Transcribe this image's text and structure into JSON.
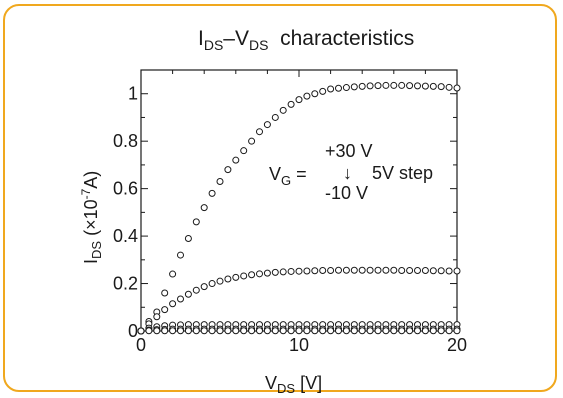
{
  "chart_data": {
    "type": "scatter",
    "title": {
      "main": "I",
      "sub1": "DS",
      "mid": "–V",
      "sub2": "DS",
      "tail": "  characteristics"
    },
    "xlabel": {
      "main": "V",
      "sub": "DS",
      "tail": " [V]"
    },
    "ylabel": {
      "main": "I",
      "sub": "DS",
      "mid": " (×10",
      "sup": "-7",
      "tail": "A)"
    },
    "xlim": [
      0,
      20
    ],
    "ylim": [
      0,
      1.1
    ],
    "x_ticks": [
      0,
      10,
      20
    ],
    "x_tick_labels": [
      "0",
      "10",
      "20"
    ],
    "y_ticks": [
      0,
      0.2,
      0.4,
      0.6,
      0.8,
      1.0
    ],
    "y_tick_labels": [
      "0",
      "0.2",
      "0.4",
      "0.6",
      "0.8",
      "1"
    ],
    "grid": false,
    "marker": "open-circle",
    "annotation": {
      "vg_main": "V",
      "vg_sub": "G",
      "vg_eq": " =",
      "top": "+30 V",
      "arrow": "↓",
      "step": "5V step",
      "bottom": "-10 V"
    },
    "series": [
      {
        "vg": 30,
        "x": [
          0,
          0.5,
          1,
          1.5,
          2,
          2.5,
          3,
          3.5,
          4,
          4.5,
          5,
          5.5,
          6,
          6.5,
          7,
          7.5,
          8,
          8.5,
          9,
          9.5,
          10,
          10.5,
          11,
          11.5,
          12,
          12.5,
          13,
          13.5,
          14,
          14.5,
          15,
          15.5,
          16,
          16.5,
          17,
          17.5,
          18,
          18.5,
          19,
          19.5,
          20
        ],
        "y": [
          0,
          0.04,
          0.08,
          0.16,
          0.24,
          0.32,
          0.39,
          0.46,
          0.52,
          0.58,
          0.63,
          0.68,
          0.72,
          0.76,
          0.8,
          0.84,
          0.87,
          0.9,
          0.93,
          0.955,
          0.975,
          0.99,
          1.0,
          1.01,
          1.02,
          1.023,
          1.026,
          1.029,
          1.031,
          1.033,
          1.034,
          1.035,
          1.035,
          1.035,
          1.034,
          1.033,
          1.032,
          1.031,
          1.03,
          1.027,
          1.024
        ]
      },
      {
        "vg": 25,
        "x": [
          0,
          0.5,
          1,
          1.5,
          2,
          2.5,
          3,
          3.5,
          4,
          4.5,
          5,
          5.5,
          6,
          6.5,
          7,
          7.5,
          8,
          8.5,
          9,
          9.5,
          10,
          10.5,
          11,
          11.5,
          12,
          12.5,
          13,
          13.5,
          14,
          14.5,
          15,
          15.5,
          16,
          16.5,
          17,
          17.5,
          18,
          18.5,
          19,
          19.5,
          20
        ],
        "y": [
          0,
          0.03,
          0.06,
          0.09,
          0.115,
          0.135,
          0.155,
          0.172,
          0.187,
          0.2,
          0.21,
          0.219,
          0.226,
          0.232,
          0.237,
          0.241,
          0.244,
          0.247,
          0.249,
          0.251,
          0.252,
          0.253,
          0.254,
          0.255,
          0.255,
          0.256,
          0.256,
          0.256,
          0.256,
          0.256,
          0.256,
          0.256,
          0.256,
          0.255,
          0.255,
          0.255,
          0.255,
          0.254,
          0.254,
          0.253,
          0.253
        ]
      },
      {
        "vg": 20,
        "x": [
          0,
          0.5,
          1,
          1.5,
          2,
          2.5,
          3,
          3.5,
          4,
          4.5,
          5,
          5.5,
          6,
          6.5,
          7,
          7.5,
          8,
          8.5,
          9,
          9.5,
          10,
          10.5,
          11,
          11.5,
          12,
          12.5,
          13,
          13.5,
          14,
          14.5,
          15,
          15.5,
          16,
          16.5,
          17,
          17.5,
          18,
          18.5,
          19,
          19.5,
          20
        ],
        "y": [
          0,
          0.012,
          0.018,
          0.022,
          0.025,
          0.026,
          0.027,
          0.027,
          0.027,
          0.027,
          0.027,
          0.027,
          0.027,
          0.027,
          0.027,
          0.027,
          0.027,
          0.027,
          0.027,
          0.027,
          0.027,
          0.027,
          0.027,
          0.027,
          0.027,
          0.027,
          0.027,
          0.027,
          0.027,
          0.027,
          0.027,
          0.027,
          0.027,
          0.027,
          0.027,
          0.027,
          0.027,
          0.027,
          0.027,
          0.027,
          0.027
        ]
      },
      {
        "vg": 15,
        "x": [
          0,
          0.5,
          1,
          1.5,
          2,
          2.5,
          3,
          3.5,
          4,
          4.5,
          5,
          5.5,
          6,
          6.5,
          7,
          7.5,
          8,
          8.5,
          9,
          9.5,
          10,
          10.5,
          11,
          11.5,
          12,
          12.5,
          13,
          13.5,
          14,
          14.5,
          15,
          15.5,
          16,
          16.5,
          17,
          17.5,
          18,
          18.5,
          19,
          19.5,
          20
        ],
        "y": [
          0,
          0.004,
          0.006,
          0.007,
          0.008,
          0.008,
          0.008,
          0.008,
          0.008,
          0.008,
          0.008,
          0.008,
          0.008,
          0.008,
          0.008,
          0.008,
          0.008,
          0.008,
          0.008,
          0.008,
          0.008,
          0.008,
          0.008,
          0.008,
          0.008,
          0.008,
          0.008,
          0.008,
          0.008,
          0.008,
          0.008,
          0.008,
          0.008,
          0.008,
          0.008,
          0.008,
          0.008,
          0.008,
          0.008,
          0.008,
          0.008
        ]
      },
      {
        "vg": 10,
        "x": [
          0,
          0.5,
          1,
          1.5,
          2,
          2.5,
          3,
          3.5,
          4,
          4.5,
          5,
          5.5,
          6,
          6.5,
          7,
          7.5,
          8,
          8.5,
          9,
          9.5,
          10,
          10.5,
          11,
          11.5,
          12,
          12.5,
          13,
          13.5,
          14,
          14.5,
          15,
          15.5,
          16,
          16.5,
          17,
          17.5,
          18,
          18.5,
          19,
          19.5,
          20
        ],
        "y": [
          0,
          0.001,
          0.001,
          0.001,
          0.001,
          0.001,
          0.001,
          0.001,
          0.001,
          0.001,
          0.001,
          0.001,
          0.001,
          0.001,
          0.001,
          0.001,
          0.001,
          0.001,
          0.001,
          0.001,
          0.001,
          0.001,
          0.001,
          0.001,
          0.001,
          0.001,
          0.001,
          0.001,
          0.001,
          0.001,
          0.001,
          0.001,
          0.001,
          0.001,
          0.001,
          0.001,
          0.001,
          0.001,
          0.001,
          0.001,
          0.001
        ]
      }
    ],
    "colors": {
      "frame": "#f0a81e",
      "ink": "#1a1a1a"
    }
  }
}
